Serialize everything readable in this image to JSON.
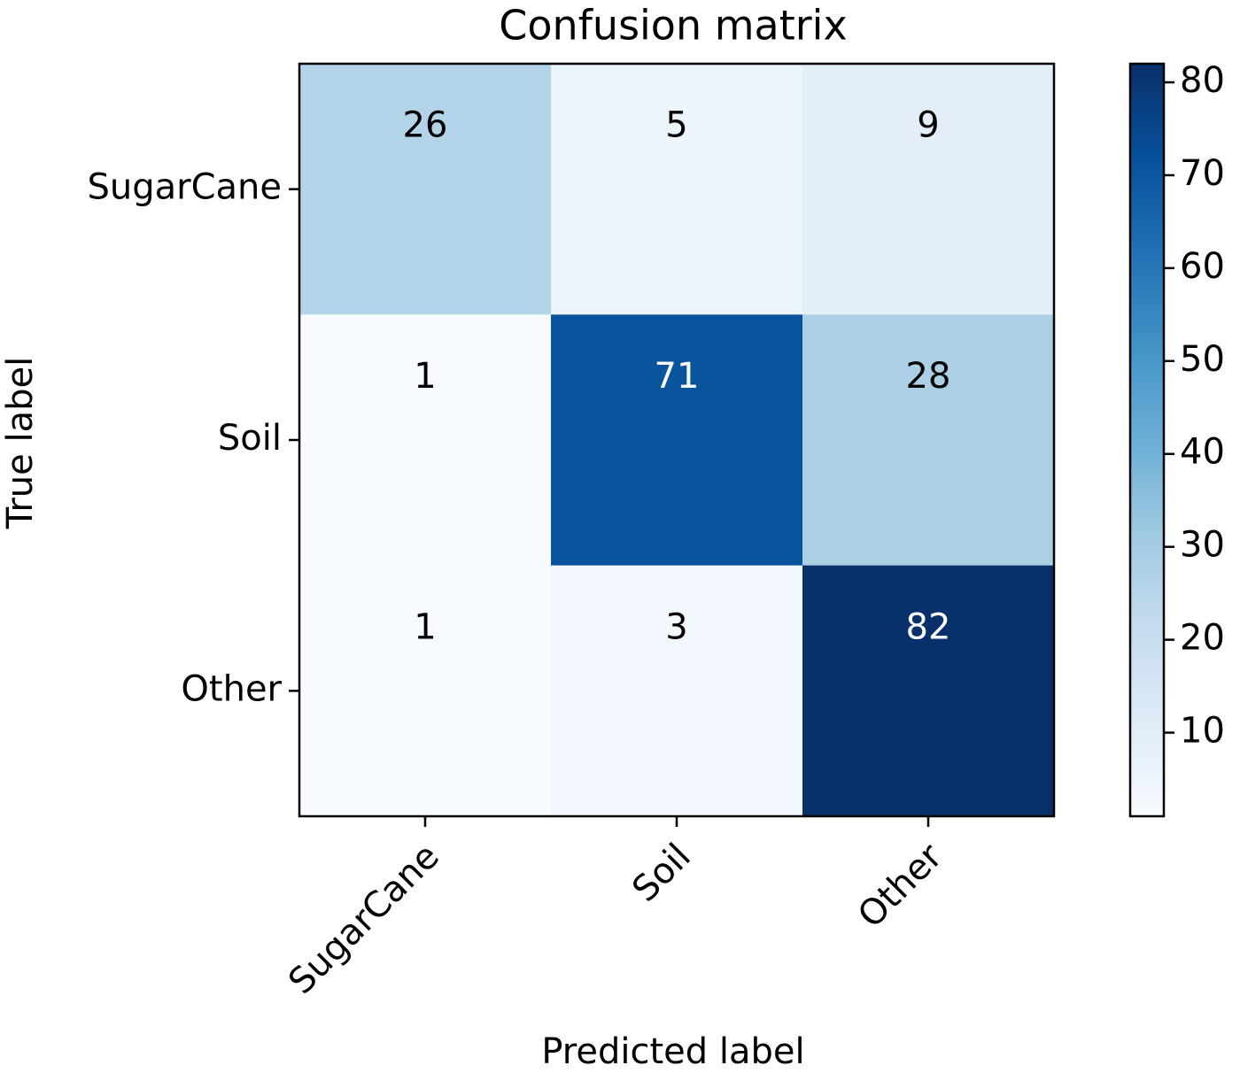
{
  "chart_data": {
    "type": "heatmap",
    "title": "Confusion matrix",
    "x_label": "Predicted label",
    "y_label": "True label",
    "x_categories": [
      "SugarCane",
      "Soil",
      "Other"
    ],
    "y_categories": [
      "SugarCane",
      "Soil",
      "Other"
    ],
    "values": [
      [
        26,
        5,
        9
      ],
      [
        1,
        71,
        28
      ],
      [
        1,
        3,
        82
      ]
    ],
    "clim": [
      1,
      82
    ],
    "cticks": [
      10,
      20,
      30,
      40,
      50,
      60,
      70,
      80
    ],
    "colormap": [
      "#f7fbff",
      "#deebf7",
      "#c6dbef",
      "#9ecae1",
      "#6baed6",
      "#4292c6",
      "#2171b5",
      "#08519c",
      "#08306b"
    ]
  }
}
